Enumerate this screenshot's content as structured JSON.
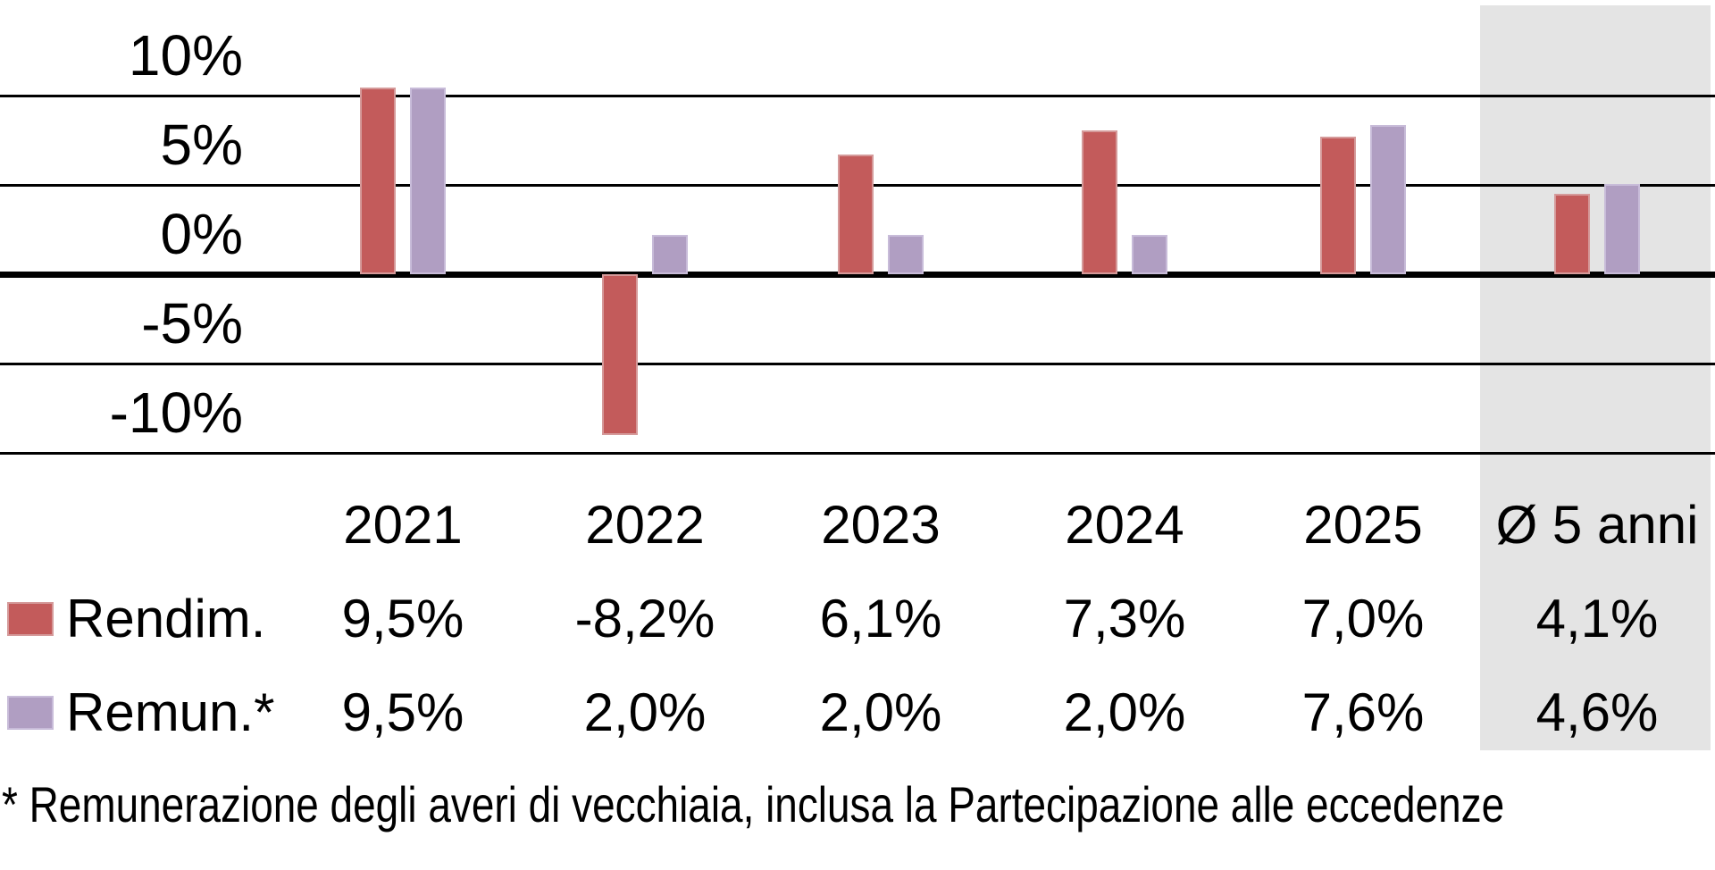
{
  "chart_data": {
    "type": "bar",
    "categories": [
      "2021",
      "2022",
      "2023",
      "2024",
      "2025",
      "Ø 5 anni"
    ],
    "series": [
      {
        "name": "Rendim.",
        "color": "#C35B5B",
        "border_color": "#D59A9A",
        "values": [
          9.5,
          -8.2,
          6.1,
          7.3,
          7.0,
          4.1
        ],
        "value_labels": [
          "9,5%",
          "-8,2%",
          "6,1%",
          "7,3%",
          "7,0%",
          "4,1%"
        ]
      },
      {
        "name": "Remun.*",
        "color": "#B09EC2",
        "border_color": "#C8BCD9",
        "values": [
          9.5,
          2.0,
          2.0,
          2.0,
          7.6,
          4.6
        ],
        "value_labels": [
          "9,5%",
          "2,0%",
          "2,0%",
          "2,0%",
          "7,6%",
          "4,6%"
        ]
      }
    ],
    "y_axis": {
      "tick_labels": [
        "10%",
        "5%",
        "0%",
        "-5%",
        "-10%"
      ],
      "tick_values": [
        10,
        5,
        0,
        -5,
        -10
      ],
      "unit": "%"
    },
    "grid": true,
    "zero_line": true,
    "legend_position": "table-left",
    "highlight": {
      "column": "Ø 5 anni",
      "color": "#E4E4E4"
    },
    "line_color": "#000000",
    "footnote": "* Remunerazione degli averi di vecchiaia, inclusa la Partecipazione alle eccedenze"
  }
}
